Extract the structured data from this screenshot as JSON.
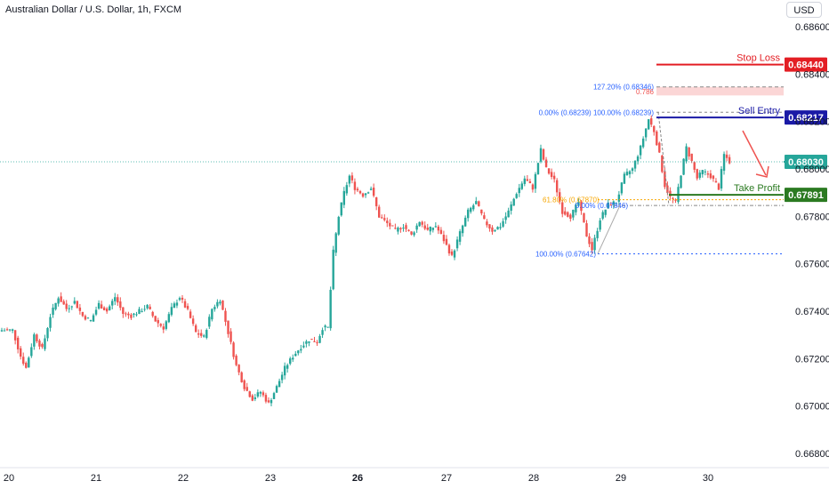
{
  "header": {
    "symbol_title": "Australian Dollar / U.S. Dollar, 1h, FXCM",
    "currency": "USD"
  },
  "colors": {
    "up": "#26a69a",
    "down": "#ef5350",
    "stop_loss": "#e31e24",
    "sell_entry": "#1a1aa6",
    "take_profit": "#2b7a21",
    "current": "#26a69a",
    "fib": "#2962ff",
    "fib_gold": "#f7a600",
    "grid_text": "#131722"
  },
  "chart_data": {
    "type": "candlestick",
    "ylim": [
      0.668,
      0.688
    ],
    "y_ticks": [
      "0.68600",
      "0.68400",
      "0.68200",
      "0.68000",
      "0.67800",
      "0.67600",
      "0.67400",
      "0.67200",
      "0.67000",
      "0.66800"
    ],
    "x_ticks": [
      "20",
      "21",
      "22",
      "23",
      "26",
      "27",
      "28",
      "29",
      "30"
    ],
    "anchors": [
      [
        0,
        0.6732
      ],
      [
        4,
        0.6732
      ],
      [
        7,
        0.6721
      ],
      [
        9,
        0.6716
      ],
      [
        12,
        0.673
      ],
      [
        15,
        0.6724
      ],
      [
        18,
        0.6738
      ],
      [
        21,
        0.6746
      ],
      [
        24,
        0.6741
      ],
      [
        27,
        0.6744
      ],
      [
        30,
        0.6738
      ],
      [
        33,
        0.6736
      ],
      [
        36,
        0.6743
      ],
      [
        39,
        0.674
      ],
      [
        42,
        0.6746
      ],
      [
        45,
        0.6739
      ],
      [
        48,
        0.6738
      ],
      [
        51,
        0.674
      ],
      [
        54,
        0.6742
      ],
      [
        57,
        0.6736
      ],
      [
        60,
        0.6733
      ],
      [
        63,
        0.6741
      ],
      [
        66,
        0.6746
      ],
      [
        69,
        0.674
      ],
      [
        72,
        0.6731
      ],
      [
        75,
        0.6729
      ],
      [
        78,
        0.6741
      ],
      [
        81,
        0.6745
      ],
      [
        84,
        0.6731
      ],
      [
        87,
        0.6717
      ],
      [
        90,
        0.6708
      ],
      [
        93,
        0.6703
      ],
      [
        96,
        0.6706
      ],
      [
        99,
        0.6701
      ],
      [
        102,
        0.6708
      ],
      [
        105,
        0.6716
      ],
      [
        108,
        0.6721
      ],
      [
        111,
        0.6725
      ],
      [
        114,
        0.6728
      ],
      [
        117,
        0.6727
      ],
      [
        119,
        0.6733
      ],
      [
        121,
        0.6733
      ],
      [
        123,
        0.6765
      ],
      [
        125,
        0.678
      ],
      [
        127,
        0.679
      ],
      [
        129,
        0.6797
      ],
      [
        131,
        0.6792
      ],
      [
        134,
        0.6789
      ],
      [
        137,
        0.6792
      ],
      [
        140,
        0.678
      ],
      [
        143,
        0.6777
      ],
      [
        146,
        0.6774
      ],
      [
        149,
        0.6776
      ],
      [
        152,
        0.6772
      ],
      [
        155,
        0.6778
      ],
      [
        158,
        0.6774
      ],
      [
        161,
        0.6776
      ],
      [
        164,
        0.677
      ],
      [
        167,
        0.6763
      ],
      [
        170,
        0.6773
      ],
      [
        173,
        0.6782
      ],
      [
        176,
        0.6786
      ],
      [
        179,
        0.6778
      ],
      [
        182,
        0.6774
      ],
      [
        185,
        0.6776
      ],
      [
        188,
        0.6782
      ],
      [
        191,
        0.679
      ],
      [
        194,
        0.6796
      ],
      [
        197,
        0.6792
      ],
      [
        200,
        0.6808
      ],
      [
        202,
        0.68
      ],
      [
        205,
        0.6795
      ],
      [
        208,
        0.6782
      ],
      [
        211,
        0.678
      ],
      [
        214,
        0.6786
      ],
      [
        217,
        0.6772
      ],
      [
        219,
        0.6766
      ],
      [
        222,
        0.6779
      ],
      [
        225,
        0.6785
      ],
      [
        228,
        0.6786
      ],
      [
        231,
        0.6797
      ],
      [
        234,
        0.68
      ],
      [
        237,
        0.6809
      ],
      [
        240,
        0.6821
      ],
      [
        242,
        0.6816
      ],
      [
        244,
        0.6806
      ],
      [
        246,
        0.6793
      ],
      [
        248,
        0.6788
      ],
      [
        250,
        0.6786
      ],
      [
        252,
        0.6798
      ],
      [
        254,
        0.6809
      ],
      [
        256,
        0.6803
      ],
      [
        258,
        0.6796
      ],
      [
        260,
        0.6799
      ],
      [
        263,
        0.6797
      ],
      [
        266,
        0.6792
      ],
      [
        268,
        0.6806
      ],
      [
        270,
        0.6803
      ]
    ],
    "fib_levels": [
      {
        "label": "127.20% (0.68346)",
        "price": 0.68346
      },
      {
        "label": "0.786",
        "price": 0.6833
      },
      {
        "label": "0.00% (0.68239) 100.00% (0.68239)",
        "price": 0.68239
      },
      {
        "label": "61.80% (0.67870)",
        "price": 0.6787
      },
      {
        "label": "0.00% (0.67846)",
        "price": 0.67846
      },
      {
        "label": "100.00% (0.67642)",
        "price": 0.67642
      }
    ],
    "levels": {
      "stop_loss": {
        "label": "Stop Loss",
        "price": 0.6844,
        "price_label": "0.68440"
      },
      "sell_entry": {
        "label": "Sell Entry",
        "price": 0.68217,
        "price_label": "0.68217"
      },
      "take_profit": {
        "label": "Take Profit",
        "price": 0.67891,
        "price_label": "0.67891"
      },
      "current": {
        "price": 0.6803,
        "price_label": "0.68030"
      }
    }
  }
}
